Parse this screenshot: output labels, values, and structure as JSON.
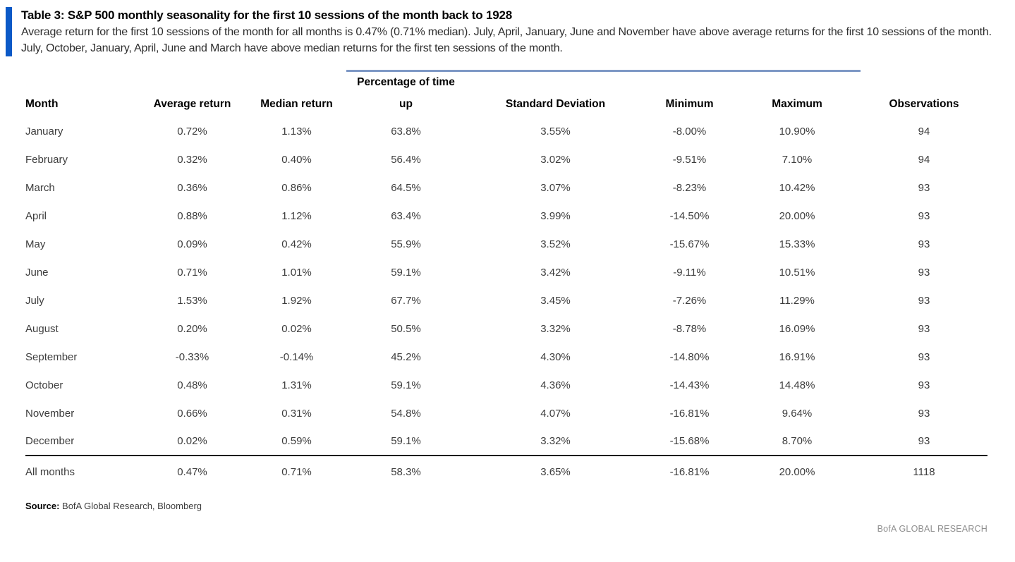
{
  "header": {
    "title": "Table 3: S&P 500 monthly seasonality for the first 10 sessions of the month back to 1928",
    "subtitle": "Average return for the first 10 sessions of the month for all months is 0.47% (0.71% median). July, April, January, June and November have above average returns for the first 10 sessions of the month. July, October, January, April, June and March have above median returns for the first ten sessions of the month."
  },
  "colors": {
    "accent_bar_blue": "#0b59c7",
    "group_border_blue": "#7d98c5",
    "total_rule_dark": "#1a1a1a",
    "footer_gray": "#8f8f8f"
  },
  "table": {
    "group_header": "Percentage of time",
    "columns": [
      "Month",
      "Average return",
      "Median return",
      "up",
      "Standard Deviation",
      "Minimum",
      "Maximum",
      "Observations"
    ],
    "rows": [
      [
        "January",
        "0.72%",
        "1.13%",
        "63.8%",
        "3.55%",
        "-8.00%",
        "10.90%",
        "94"
      ],
      [
        "February",
        "0.32%",
        "0.40%",
        "56.4%",
        "3.02%",
        "-9.51%",
        "7.10%",
        "94"
      ],
      [
        "March",
        "0.36%",
        "0.86%",
        "64.5%",
        "3.07%",
        "-8.23%",
        "10.42%",
        "93"
      ],
      [
        "April",
        "0.88%",
        "1.12%",
        "63.4%",
        "3.99%",
        "-14.50%",
        "20.00%",
        "93"
      ],
      [
        "May",
        "0.09%",
        "0.42%",
        "55.9%",
        "3.52%",
        "-15.67%",
        "15.33%",
        "93"
      ],
      [
        "June",
        "0.71%",
        "1.01%",
        "59.1%",
        "3.42%",
        "-9.11%",
        "10.51%",
        "93"
      ],
      [
        "July",
        "1.53%",
        "1.92%",
        "67.7%",
        "3.45%",
        "-7.26%",
        "11.29%",
        "93"
      ],
      [
        "August",
        "0.20%",
        "0.02%",
        "50.5%",
        "3.32%",
        "-8.78%",
        "16.09%",
        "93"
      ],
      [
        "September",
        "-0.33%",
        "-0.14%",
        "45.2%",
        "4.30%",
        "-14.80%",
        "16.91%",
        "93"
      ],
      [
        "October",
        "0.48%",
        "1.31%",
        "59.1%",
        "4.36%",
        "-14.43%",
        "14.48%",
        "93"
      ],
      [
        "November",
        "0.66%",
        "0.31%",
        "54.8%",
        "4.07%",
        "-16.81%",
        "9.64%",
        "93"
      ],
      [
        "December",
        "0.02%",
        "0.59%",
        "59.1%",
        "3.32%",
        "-15.68%",
        "8.70%",
        "93"
      ]
    ],
    "total_row": [
      "All months",
      "0.47%",
      "0.71%",
      "58.3%",
      "3.65%",
      "-16.81%",
      "20.00%",
      "1118"
    ]
  },
  "source": {
    "label": "Source:",
    "text": " BofA Global Research, Bloomberg"
  },
  "footer": {
    "brand": "BofA GLOBAL RESEARCH"
  }
}
